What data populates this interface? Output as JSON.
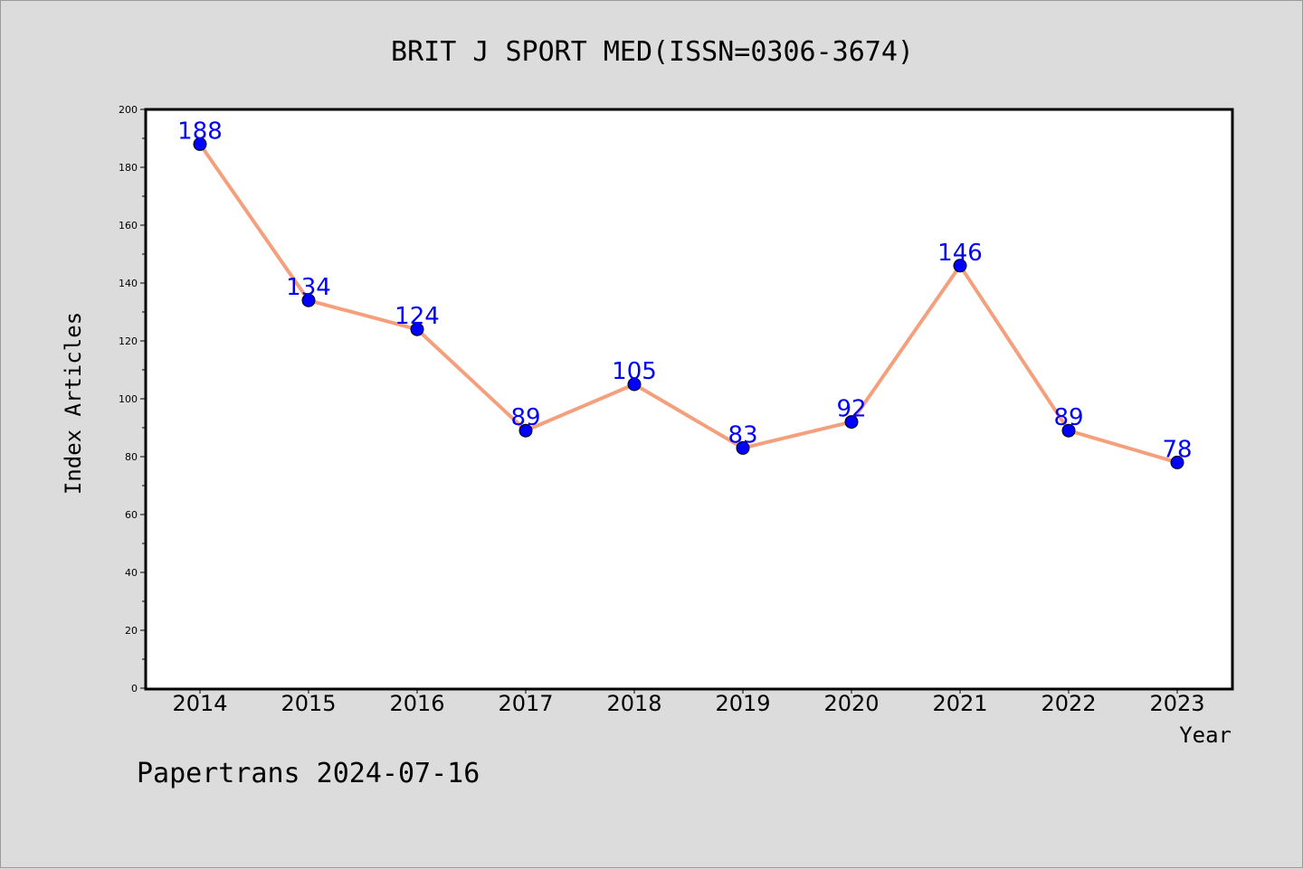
{
  "chart_data": {
    "type": "line",
    "title": "BRIT J SPORT MED(ISSN=0306-3674)",
    "xlabel": "Year",
    "ylabel": "Index Articles",
    "categories": [
      "2014",
      "2015",
      "2016",
      "2017",
      "2018",
      "2019",
      "2020",
      "2021",
      "2022",
      "2023"
    ],
    "series": [
      {
        "values": [
          188,
          134,
          124,
          89,
          105,
          83,
          92,
          146,
          89,
          78
        ]
      }
    ],
    "data_labels": [
      "188",
      "134",
      "124",
      "89",
      "105",
      "83",
      "92",
      "146",
      "89",
      "78"
    ],
    "ylim": [
      0,
      200
    ],
    "yticks": [
      "0",
      "20",
      "40",
      "60",
      "80",
      "100",
      "120",
      "140",
      "160",
      "180",
      "200"
    ],
    "grid": false,
    "line_color": "#f4a07c",
    "marker_color": "#0000ff",
    "label_color": "#0000ff"
  },
  "footer": "Papertrans 2024-07-16"
}
